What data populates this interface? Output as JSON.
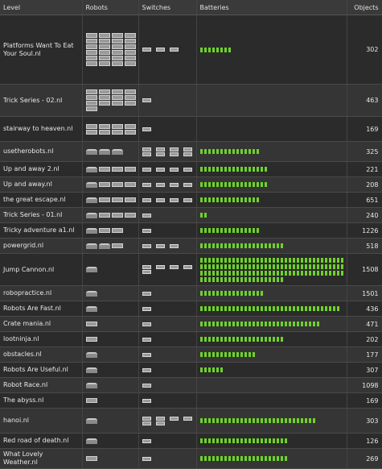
{
  "headers": {
    "level": "Level",
    "robots": "Robots",
    "switches": "Switches",
    "batteries": "Batteries",
    "objects": "Objects"
  },
  "rows": [
    {
      "level": "Platforms Want To Eat Your Soul.nl",
      "robots": "bbbbbbbbbbbbbbbbbbbbbbbb",
      "switches": 3,
      "batteries": 8,
      "objects": "302",
      "h": 86
    },
    {
      "level": "Trick Series - 02.nl",
      "robots": "bbbbbbbbbbbbb",
      "switches": 1,
      "batteries": 0,
      "objects": "463",
      "h": 40
    },
    {
      "level": "stairway to heaven.nl",
      "robots": "bbbbbbbb",
      "switches": 1,
      "batteries": 0,
      "objects": "169",
      "h": 31
    },
    {
      "level": "usetherobots.nl",
      "robots": "rrr",
      "switches": 8,
      "batteries": 15,
      "objects": "325",
      "h": 25
    },
    {
      "level": "Up and away 2.nl",
      "robots": "rbbb",
      "switches": 4,
      "batteries": 17,
      "objects": "221",
      "h": 19
    },
    {
      "level": "Up and away.nl",
      "robots": "rbbb",
      "switches": 4,
      "batteries": 17,
      "objects": "208",
      "h": 19
    },
    {
      "level": "the great escape.nl",
      "robots": "rbbb",
      "switches": 4,
      "batteries": 15,
      "objects": "651",
      "h": 19
    },
    {
      "level": "Trick Series - 01.nl",
      "robots": "rbbb",
      "switches": 1,
      "batteries": 2,
      "objects": "240",
      "h": 19
    },
    {
      "level": "Tricky adventure a1.nl",
      "robots": "rbb",
      "switches": 1,
      "batteries": 15,
      "objects": "1226",
      "h": 19
    },
    {
      "level": "powergrid.nl",
      "robots": "rrb",
      "switches": 3,
      "batteries": 21,
      "objects": "518",
      "h": 19
    },
    {
      "level": "Jump Cannon.nl",
      "robots": "r",
      "switches": 5,
      "batteries": 129,
      "objects": "1508",
      "h": 40
    },
    {
      "level": "robopractice.nl",
      "robots": "r",
      "switches": 1,
      "batteries": 16,
      "objects": "1501",
      "h": 19
    },
    {
      "level": "Robots Are Fast.nl",
      "robots": "r",
      "switches": 1,
      "batteries": 35,
      "objects": "436",
      "h": 19
    },
    {
      "level": "Crate mania.nl",
      "robots": "b",
      "switches": 1,
      "batteries": 30,
      "objects": "471",
      "h": 19
    },
    {
      "level": "lootninja.nl",
      "robots": "b",
      "switches": 1,
      "batteries": 21,
      "objects": "202",
      "h": 19
    },
    {
      "level": "obstacles.nl",
      "robots": "r",
      "switches": 1,
      "batteries": 14,
      "objects": "177",
      "h": 19
    },
    {
      "level": "Robots Are Useful.nl",
      "robots": "r",
      "switches": 1,
      "batteries": 6,
      "objects": "307",
      "h": 19
    },
    {
      "level": "Robot Race.nl",
      "robots": "r",
      "switches": 1,
      "batteries": 0,
      "objects": "1098",
      "h": 19
    },
    {
      "level": "The abyss.nl",
      "robots": "b",
      "switches": 1,
      "batteries": 0,
      "objects": "169",
      "h": 19
    },
    {
      "level": "hanoi.nl",
      "robots": "r",
      "switches": 6,
      "batteries": 29,
      "objects": "303",
      "h": 31
    },
    {
      "level": "Red road of death.nl",
      "robots": "r",
      "switches": 1,
      "batteries": 22,
      "objects": "126",
      "h": 19
    },
    {
      "level": "What Lovely Weather.nl",
      "robots": "b",
      "switches": 1,
      "batteries": 22,
      "objects": "269",
      "h": 19
    }
  ]
}
